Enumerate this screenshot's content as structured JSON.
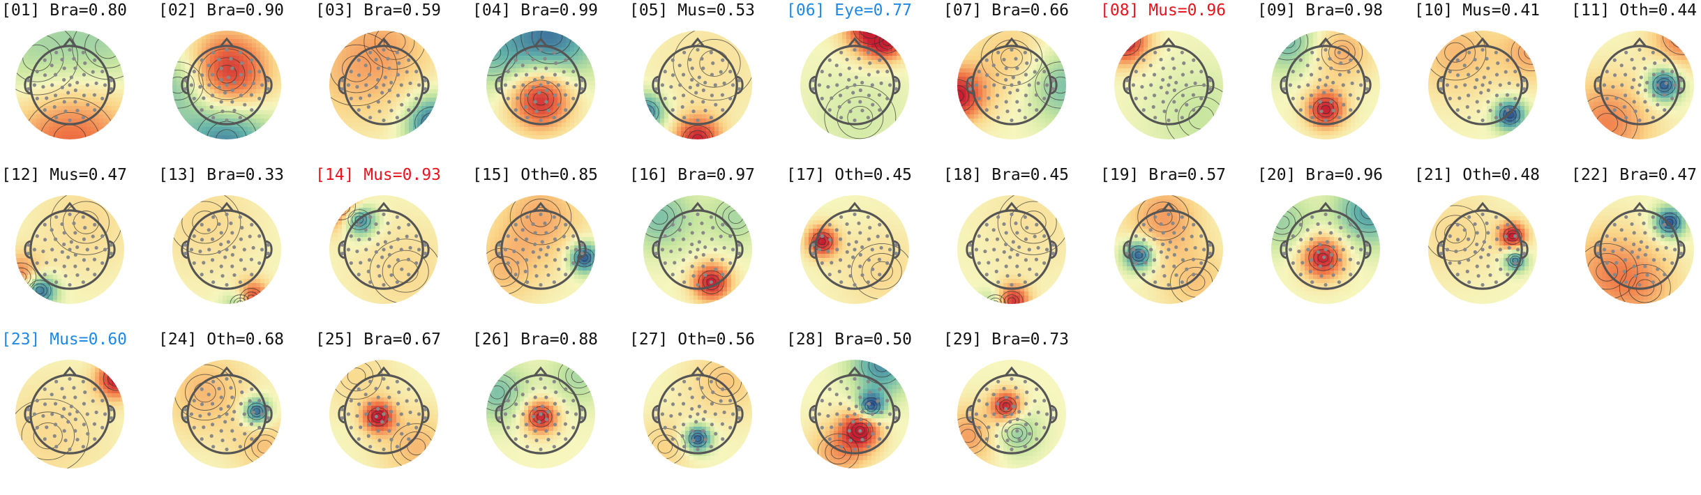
{
  "chart_data": {
    "type": "topomap-grid",
    "title": "",
    "label_colors": {
      "default": "#111111",
      "highlight_red": "#e8141e",
      "highlight_blue": "#1e88e5"
    },
    "components": [
      {
        "id": "01",
        "cls": "Bra",
        "p": "0.80",
        "label": "[01] Bra=0.80",
        "color": "#111111",
        "blobs": [
          {
            "c": [
              0.0,
              -1.0
            ],
            "w": 0.9,
            "a": 0.7
          },
          {
            "c": [
              -0.6,
              0.5
            ],
            "w": 0.8,
            "a": -0.35
          },
          {
            "c": [
              0.7,
              0.7
            ],
            "w": 0.7,
            "a": -0.3
          }
        ]
      },
      {
        "id": "02",
        "cls": "Bra",
        "p": "0.90",
        "label": "[02] Bra=0.90",
        "color": "#111111",
        "blobs": [
          {
            "c": [
              0.0,
              0.2
            ],
            "w": 0.55,
            "a": 1.0
          },
          {
            "c": [
              0.0,
              -1.0
            ],
            "w": 0.6,
            "a": -0.8
          },
          {
            "c": [
              -0.9,
              0.0
            ],
            "w": 0.5,
            "a": -0.5
          }
        ]
      },
      {
        "id": "03",
        "cls": "Bra",
        "p": "0.59",
        "label": "[03] Bra=0.59",
        "color": "#111111",
        "blobs": [
          {
            "c": [
              0.9,
              -0.7
            ],
            "w": 0.35,
            "a": -0.9
          },
          {
            "c": [
              -0.5,
              0.3
            ],
            "w": 0.8,
            "a": 0.35
          },
          {
            "c": [
              0.2,
              0.8
            ],
            "w": 0.6,
            "a": 0.2
          }
        ]
      },
      {
        "id": "04",
        "cls": "Bra",
        "p": "0.99",
        "label": "[04] Bra=0.99",
        "color": "#111111",
        "blobs": [
          {
            "c": [
              0.0,
              -0.25
            ],
            "w": 0.4,
            "a": 1.0
          },
          {
            "c": [
              0.2,
              0.9
            ],
            "w": 0.6,
            "a": -0.8
          },
          {
            "c": [
              -0.9,
              0.6
            ],
            "w": 0.5,
            "a": -0.4
          }
        ]
      },
      {
        "id": "05",
        "cls": "Mus",
        "p": "0.53",
        "label": "[05] Mus=0.53",
        "color": "#111111",
        "blobs": [
          {
            "c": [
              0.0,
              -1.0
            ],
            "w": 0.3,
            "a": 0.95
          },
          {
            "c": [
              -0.95,
              -0.5
            ],
            "w": 0.25,
            "a": -0.8
          },
          {
            "c": [
              0.3,
              0.4
            ],
            "w": 0.8,
            "a": 0.15
          }
        ]
      },
      {
        "id": "06",
        "cls": "Eye",
        "p": "0.77",
        "label": "[06] Eye=0.77",
        "color": "#1e88e5",
        "blobs": [
          {
            "c": [
              0.3,
              1.05
            ],
            "w": 0.35,
            "a": 1.0
          },
          {
            "c": [
              0.6,
              0.8
            ],
            "w": 0.25,
            "a": 0.7
          },
          {
            "c": [
              0.1,
              -0.6
            ],
            "w": 0.7,
            "a": -0.15
          }
        ]
      },
      {
        "id": "07",
        "cls": "Bra",
        "p": "0.66",
        "label": "[07] Bra=0.66",
        "color": "#111111",
        "blobs": [
          {
            "c": [
              -1.0,
              -0.2
            ],
            "w": 0.35,
            "a": 1.0
          },
          {
            "c": [
              0.9,
              0.0
            ],
            "w": 0.5,
            "a": -0.5
          },
          {
            "c": [
              0.0,
              0.5
            ],
            "w": 0.6,
            "a": 0.3
          }
        ]
      },
      {
        "id": "08",
        "cls": "Mus",
        "p": "0.96",
        "label": "[08] Mus=0.96",
        "color": "#e8141e",
        "blobs": [
          {
            "c": [
              -0.8,
              0.8
            ],
            "w": 0.3,
            "a": 1.0
          },
          {
            "c": [
              0.6,
              -0.6
            ],
            "w": 0.7,
            "a": -0.2
          }
        ]
      },
      {
        "id": "09",
        "cls": "Bra",
        "p": "0.98",
        "label": "[09] Bra=0.98",
        "color": "#111111",
        "blobs": [
          {
            "c": [
              0.0,
              -0.45
            ],
            "w": 0.25,
            "a": 1.0
          },
          {
            "c": [
              0.3,
              0.6
            ],
            "w": 0.4,
            "a": 0.4
          },
          {
            "c": [
              -0.7,
              0.8
            ],
            "w": 0.4,
            "a": -0.5
          }
        ]
      },
      {
        "id": "10",
        "cls": "Mus",
        "p": "0.41",
        "label": "[10] Mus=0.41",
        "color": "#111111",
        "blobs": [
          {
            "c": [
              0.5,
              -0.55
            ],
            "w": 0.2,
            "a": -1.0
          },
          {
            "c": [
              -0.5,
              0.6
            ],
            "w": 0.6,
            "a": 0.35
          },
          {
            "c": [
              0.9,
              0.6
            ],
            "w": 0.4,
            "a": 0.4
          }
        ]
      },
      {
        "id": "11",
        "cls": "Oth",
        "p": "0.44",
        "label": "[11] Oth=0.44",
        "color": "#111111",
        "blobs": [
          {
            "c": [
              0.45,
              0.0
            ],
            "w": 0.22,
            "a": -1.0
          },
          {
            "c": [
              -0.6,
              -0.7
            ],
            "w": 0.6,
            "a": 0.55
          },
          {
            "c": [
              0.8,
              0.9
            ],
            "w": 0.4,
            "a": 0.6
          }
        ]
      },
      {
        "id": "12",
        "cls": "Mus",
        "p": "0.47",
        "label": "[12] Mus=0.47",
        "color": "#111111",
        "blobs": [
          {
            "c": [
              -0.55,
              -0.75
            ],
            "w": 0.22,
            "a": -1.0
          },
          {
            "c": [
              -0.9,
              -0.5
            ],
            "w": 0.3,
            "a": 0.6
          },
          {
            "c": [
              0.3,
              0.5
            ],
            "w": 0.7,
            "a": 0.2
          }
        ]
      },
      {
        "id": "13",
        "cls": "Bra",
        "p": "0.33",
        "label": "[13] Bra=0.33",
        "color": "#111111",
        "blobs": [
          {
            "c": [
              0.45,
              -0.9
            ],
            "w": 0.22,
            "a": 1.0
          },
          {
            "c": [
              0.25,
              -1.0
            ],
            "w": 0.2,
            "a": -0.7
          },
          {
            "c": [
              -0.4,
              0.5
            ],
            "w": 0.7,
            "a": 0.2
          }
        ]
      },
      {
        "id": "14",
        "cls": "Mus",
        "p": "0.93",
        "label": "[14] Mus=0.93",
        "color": "#e8141e",
        "blobs": [
          {
            "c": [
              -0.45,
              0.55
            ],
            "w": 0.22,
            "a": -1.0
          },
          {
            "c": [
              -0.8,
              0.8
            ],
            "w": 0.3,
            "a": 0.9
          },
          {
            "c": [
              0.4,
              -0.4
            ],
            "w": 0.7,
            "a": 0.2
          }
        ]
      },
      {
        "id": "15",
        "cls": "Oth",
        "p": "0.85",
        "label": "[15] Oth=0.85",
        "color": "#111111",
        "blobs": [
          {
            "c": [
              0.8,
              -0.15
            ],
            "w": 0.2,
            "a": -1.0
          },
          {
            "c": [
              0.0,
              0.6
            ],
            "w": 0.6,
            "a": 0.4
          },
          {
            "c": [
              -0.7,
              -0.4
            ],
            "w": 0.5,
            "a": 0.3
          }
        ]
      },
      {
        "id": "16",
        "cls": "Bra",
        "p": "0.97",
        "label": "[16] Bra=0.97",
        "color": "#111111",
        "blobs": [
          {
            "c": [
              0.25,
              -0.6
            ],
            "w": 0.25,
            "a": 1.0
          },
          {
            "c": [
              -0.7,
              0.6
            ],
            "w": 0.45,
            "a": -0.45
          },
          {
            "c": [
              0.7,
              0.6
            ],
            "w": 0.4,
            "a": -0.3
          }
        ]
      },
      {
        "id": "17",
        "cls": "Oth",
        "p": "0.45",
        "label": "[17] Oth=0.45",
        "color": "#111111",
        "blobs": [
          {
            "c": [
              -0.6,
              0.15
            ],
            "w": 0.2,
            "a": 1.0
          },
          {
            "c": [
              0.5,
              -0.4
            ],
            "w": 0.6,
            "a": 0.2
          }
        ]
      },
      {
        "id": "18",
        "cls": "Bra",
        "p": "0.45",
        "label": "[18] Bra=0.45",
        "color": "#111111",
        "blobs": [
          {
            "c": [
              0.0,
              -0.95
            ],
            "w": 0.22,
            "a": 1.0
          },
          {
            "c": [
              -0.3,
              -1.0
            ],
            "w": 0.2,
            "a": -0.5
          },
          {
            "c": [
              0.4,
              0.5
            ],
            "w": 0.7,
            "a": 0.15
          }
        ]
      },
      {
        "id": "19",
        "cls": "Bra",
        "p": "0.57",
        "label": "[19] Bra=0.57",
        "color": "#111111",
        "blobs": [
          {
            "c": [
              -0.55,
              -0.1
            ],
            "w": 0.2,
            "a": -1.0
          },
          {
            "c": [
              -0.1,
              0.6
            ],
            "w": 0.5,
            "a": 0.45
          },
          {
            "c": [
              0.5,
              -0.6
            ],
            "w": 0.5,
            "a": 0.3
          }
        ]
      },
      {
        "id": "20",
        "cls": "Bra",
        "p": "0.96",
        "label": "[20] Bra=0.96",
        "color": "#111111",
        "blobs": [
          {
            "c": [
              -0.05,
              -0.15
            ],
            "w": 0.28,
            "a": 1.0
          },
          {
            "c": [
              0.8,
              0.7
            ],
            "w": 0.45,
            "a": -0.65
          },
          {
            "c": [
              -0.8,
              0.5
            ],
            "w": 0.4,
            "a": -0.35
          }
        ]
      },
      {
        "id": "21",
        "cls": "Oth",
        "p": "0.48",
        "label": "[21] Oth=0.48",
        "color": "#111111",
        "blobs": [
          {
            "c": [
              0.55,
              0.25
            ],
            "w": 0.18,
            "a": 1.0
          },
          {
            "c": [
              0.6,
              -0.2
            ],
            "w": 0.15,
            "a": -0.8
          },
          {
            "c": [
              -0.5,
              0.3
            ],
            "w": 0.6,
            "a": 0.2
          }
        ]
      },
      {
        "id": "22",
        "cls": "Bra",
        "p": "0.47",
        "label": "[22] Bra=0.47",
        "color": "#111111",
        "blobs": [
          {
            "c": [
              0.55,
              0.5
            ],
            "w": 0.2,
            "a": -1.0
          },
          {
            "c": [
              -0.6,
              -0.4
            ],
            "w": 0.6,
            "a": 0.45
          },
          {
            "c": [
              0.1,
              -0.7
            ],
            "w": 0.5,
            "a": 0.3
          }
        ]
      },
      {
        "id": "23",
        "cls": "Mus",
        "p": "0.60",
        "label": "[23] Mus=0.60",
        "color": "#1e88e5",
        "blobs": [
          {
            "c": [
              0.85,
              0.65
            ],
            "w": 0.25,
            "a": 1.0
          },
          {
            "c": [
              -0.4,
              -0.4
            ],
            "w": 0.8,
            "a": 0.2
          }
        ]
      },
      {
        "id": "24",
        "cls": "Oth",
        "p": "0.68",
        "label": "[24] Oth=0.68",
        "color": "#111111",
        "blobs": [
          {
            "c": [
              0.55,
              0.05
            ],
            "w": 0.18,
            "a": -1.0
          },
          {
            "c": [
              -0.4,
              0.4
            ],
            "w": 0.6,
            "a": 0.35
          },
          {
            "c": [
              0.7,
              -0.6
            ],
            "w": 0.4,
            "a": 0.3
          }
        ]
      },
      {
        "id": "25",
        "cls": "Bra",
        "p": "0.67",
        "label": "[25] Bra=0.67",
        "color": "#111111",
        "blobs": [
          {
            "c": [
              -0.1,
              -0.05
            ],
            "w": 0.2,
            "a": 1.0
          },
          {
            "c": [
              0.6,
              -0.6
            ],
            "w": 0.5,
            "a": 0.35
          },
          {
            "c": [
              -0.5,
              0.7
            ],
            "w": 0.5,
            "a": 0.2
          }
        ]
      },
      {
        "id": "26",
        "cls": "Bra",
        "p": "0.88",
        "label": "[26] Bra=0.88",
        "color": "#111111",
        "blobs": [
          {
            "c": [
              0.0,
              -0.05
            ],
            "w": 0.22,
            "a": 1.0
          },
          {
            "c": [
              -0.8,
              0.4
            ],
            "w": 0.4,
            "a": -0.45
          },
          {
            "c": [
              0.7,
              0.7
            ],
            "w": 0.4,
            "a": -0.3
          }
        ]
      },
      {
        "id": "27",
        "cls": "Oth",
        "p": "0.56",
        "label": "[27] Oth=0.56",
        "color": "#111111",
        "blobs": [
          {
            "c": [
              0.0,
              -0.45
            ],
            "w": 0.18,
            "a": -1.0
          },
          {
            "c": [
              0.5,
              0.6
            ],
            "w": 0.5,
            "a": 0.3
          },
          {
            "c": [
              -0.6,
              -0.6
            ],
            "w": 0.4,
            "a": 0.25
          }
        ]
      },
      {
        "id": "28",
        "cls": "Bra",
        "p": "0.50",
        "label": "[28] Bra=0.50",
        "color": "#111111",
        "blobs": [
          {
            "c": [
              0.1,
              -0.3
            ],
            "w": 0.25,
            "a": 1.0
          },
          {
            "c": [
              0.3,
              0.15
            ],
            "w": 0.18,
            "a": -1.0
          },
          {
            "c": [
              0.5,
              0.9
            ],
            "w": 0.4,
            "a": -0.7
          },
          {
            "c": [
              -0.3,
              -0.7
            ],
            "w": 0.4,
            "a": 0.45
          }
        ]
      },
      {
        "id": "29",
        "cls": "Bra",
        "p": "0.73",
        "label": "[29] Bra=0.73",
        "color": "#111111",
        "blobs": [
          {
            "c": [
              -0.1,
              0.15
            ],
            "w": 0.2,
            "a": 1.0
          },
          {
            "c": [
              0.1,
              -0.35
            ],
            "w": 0.3,
            "a": -0.4
          },
          {
            "c": [
              -0.8,
              -0.4
            ],
            "w": 0.4,
            "a": 0.45
          }
        ]
      }
    ]
  }
}
